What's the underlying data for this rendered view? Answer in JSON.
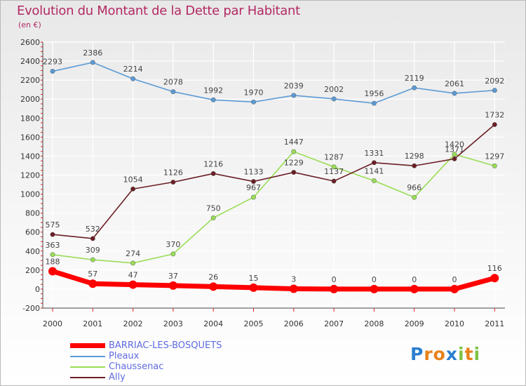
{
  "chart_data": {
    "type": "line",
    "title": "Evolution du Montant de la Dette par Habitant",
    "subtitle": "(en €)",
    "x": [
      "2000",
      "2001",
      "2002",
      "2003",
      "2004",
      "2005",
      "2006",
      "2007",
      "2008",
      "2009",
      "2010",
      "2011"
    ],
    "ylim": [
      -200,
      2600
    ],
    "yticks": [
      "-200",
      "0",
      "200",
      "400",
      "600",
      "800",
      "1000",
      "1200",
      "1400",
      "1600",
      "1800",
      "2000",
      "2200",
      "2400",
      "2600"
    ],
    "grid": true,
    "legend_position": "bottom-left",
    "series": [
      {
        "name": "BARRIAC-LES-BOSQUETS",
        "color": "#ff0000",
        "values": [
          188,
          57,
          47,
          37,
          26,
          15,
          3,
          0,
          0,
          0,
          0,
          116
        ]
      },
      {
        "name": "Pleaux",
        "color": "#5b9bd5",
        "values": [
          2293,
          2386,
          2214,
          2078,
          1992,
          1970,
          2039,
          2002,
          1956,
          2119,
          2061,
          2092
        ]
      },
      {
        "name": "Chaussenac",
        "color": "#99dd55",
        "values": [
          363,
          309,
          274,
          370,
          750,
          967,
          1447,
          1287,
          1141,
          966,
          1420,
          1297
        ]
      },
      {
        "name": "Ally",
        "color": "#6b1f25",
        "values": [
          575,
          532,
          1054,
          1126,
          1216,
          1133,
          1229,
          1137,
          1331,
          1298,
          1371,
          1732
        ]
      }
    ]
  },
  "logo": {
    "text": "Proxiti",
    "letters": [
      "P",
      "r",
      "o",
      "x",
      "i",
      "t",
      "i"
    ],
    "colors": [
      "#2a7fd0",
      "#e8811a",
      "#e8811a",
      "#2a7fd0",
      "#7dc242",
      "#e8811a",
      "#7dc242"
    ]
  }
}
